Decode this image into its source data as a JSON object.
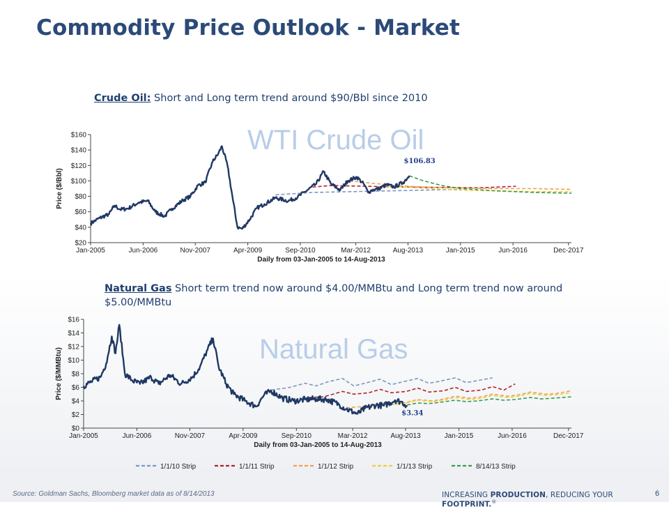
{
  "slide": {
    "title": "Commodity Price Outlook - Market",
    "oil_lead": "Crude Oil:",
    "oil_rest": " Short and Long term trend around $90/Bbl since 2010",
    "gas_lead": "Natural Gas",
    "gas_rest": " Short term trend now around $4.00/MMBtu and Long term trend now around $5.00/MMBtu",
    "source": "Source: Goldman Sachs, Bloomberg market data as of 8/14/2013",
    "tagline_pre": "INCREASING ",
    "tagline_bold1": "PRODUCTION",
    "tagline_mid": ", REDUCING YOUR ",
    "tagline_bold2": "FOOTPRINT.",
    "tagline_mark": "®",
    "page_number": "6"
  },
  "chart_data": [
    {
      "type": "line",
      "title": "WTI Crude Oil",
      "xlabel": "Daily from 03-Jan-2005 to 14-Aug-2013",
      "ylabel": "Price ($/Bbl)",
      "ylim": [
        20,
        160
      ],
      "xlim": [
        2005.0,
        2018.0
      ],
      "y_ticks": [
        "$20",
        "$40",
        "$60",
        "$80",
        "$100",
        "$120",
        "$140",
        "$160"
      ],
      "y_tick_values": [
        20,
        40,
        60,
        80,
        100,
        120,
        140,
        160
      ],
      "x_ticks": [
        "Jan-2005",
        "Jun-2006",
        "Nov-2007",
        "Apr-2009",
        "Sep-2010",
        "Mar-2012",
        "Aug-2013",
        "Jan-2015",
        "Jun-2016",
        "Dec-2017"
      ],
      "x_tick_values": [
        2005.0,
        2006.42,
        2007.83,
        2009.25,
        2010.67,
        2012.17,
        2013.58,
        2015.0,
        2016.42,
        2017.92
      ],
      "annotation": {
        "text": "$106.83",
        "x": 2013.62,
        "y": 106.83
      },
      "grid": false,
      "legend": "none",
      "series": [
        {
          "name": "WTI",
          "color": "#1f3864",
          "width": 2.4,
          "dash": "",
          "x": [
            2005.0,
            2005.25,
            2005.5,
            2005.65,
            2005.8,
            2006.0,
            2006.3,
            2006.55,
            2006.75,
            2007.0,
            2007.2,
            2007.5,
            2007.7,
            2007.9,
            2008.1,
            2008.3,
            2008.45,
            2008.55,
            2008.7,
            2008.85,
            2008.97,
            2009.1,
            2009.3,
            2009.5,
            2009.7,
            2010.0,
            2010.35,
            2010.6,
            2010.8,
            2011.1,
            2011.3,
            2011.5,
            2011.75,
            2011.95,
            2012.2,
            2012.4,
            2012.5,
            2012.6,
            2012.8,
            2013.0,
            2013.2,
            2013.45,
            2013.62
          ],
          "y": [
            45,
            52,
            57,
            68,
            63,
            64,
            72,
            74,
            60,
            54,
            64,
            75,
            80,
            94,
            98,
            125,
            135,
            145,
            120,
            75,
            40,
            38,
            50,
            65,
            70,
            78,
            74,
            79,
            86,
            96,
            112,
            96,
            88,
            100,
            105,
            95,
            85,
            88,
            90,
            95,
            92,
            98,
            106.83
          ]
        },
        {
          "name": "1/1/10 Strip",
          "color": "#7b97c4",
          "width": 1.6,
          "dash": "5 3",
          "x": [
            2010.0,
            2011.0,
            2012.0,
            2013.0,
            2014.0,
            2015.0
          ],
          "y": [
            82,
            85,
            86,
            87,
            88,
            89
          ]
        },
        {
          "name": "1/1/11 Strip",
          "color": "#b0232a",
          "width": 1.6,
          "dash": "5 3",
          "x": [
            2011.0,
            2011.5,
            2012.5,
            2013.5,
            2014.5,
            2015.5,
            2016.5
          ],
          "y": [
            92,
            94,
            93,
            92,
            91.5,
            91,
            93
          ]
        },
        {
          "name": "1/1/12 Strip",
          "color": "#f0a050",
          "width": 1.6,
          "dash": "5 3",
          "x": [
            2012.0,
            2012.6,
            2013.3,
            2014.0,
            2015.0,
            2016.0,
            2017.0,
            2018.0
          ],
          "y": [
            100,
            97,
            94,
            92,
            91,
            90,
            90,
            89
          ]
        },
        {
          "name": "1/1/13 Strip",
          "color": "#e8d040",
          "width": 1.6,
          "dash": "5 3",
          "x": [
            2013.0,
            2013.5,
            2014.2,
            2015.0,
            2016.0,
            2017.0,
            2018.0
          ],
          "y": [
            93,
            92,
            90,
            88,
            87,
            86,
            86
          ]
        },
        {
          "name": "8/14/13 Strip",
          "color": "#3a9a50",
          "width": 1.6,
          "dash": "5 3",
          "x": [
            2013.62,
            2014.0,
            2014.5,
            2015.0,
            2016.0,
            2017.0,
            2018.0
          ],
          "y": [
            106.5,
            100,
            94,
            90,
            87,
            85,
            84
          ]
        }
      ]
    },
    {
      "type": "line",
      "title": "Natural Gas",
      "xlabel": "Daily from 03-Jan-2005 to 14-Aug-2013",
      "ylabel": "Price ($/MMBtu)",
      "ylim": [
        0,
        16
      ],
      "xlim": [
        2005.0,
        2018.0
      ],
      "y_ticks": [
        "$0",
        "$2",
        "$4",
        "$6",
        "$8",
        "$10",
        "$12",
        "$14",
        "$16"
      ],
      "y_tick_values": [
        0,
        2,
        4,
        6,
        8,
        10,
        12,
        14,
        16
      ],
      "x_ticks": [
        "Jan-2005",
        "Jun-2006",
        "Nov-2007",
        "Apr-2009",
        "Sep-2010",
        "Mar-2012",
        "Aug-2013",
        "Jan-2015",
        "Jun-2016",
        "Dec-2017"
      ],
      "x_tick_values": [
        2005.0,
        2006.42,
        2007.83,
        2009.25,
        2010.67,
        2012.17,
        2013.58,
        2015.0,
        2016.42,
        2017.92
      ],
      "annotation": {
        "text": "$3.34",
        "x": 2013.62,
        "y": 3.34
      },
      "grid": false,
      "legend": "bottom",
      "series": [
        {
          "name": "Natural Gas",
          "color": "#1f3864",
          "width": 2.4,
          "dash": "",
          "x": [
            2005.0,
            2005.2,
            2005.45,
            2005.6,
            2005.75,
            2005.85,
            2005.95,
            2006.1,
            2006.3,
            2006.5,
            2006.8,
            2007.0,
            2007.3,
            2007.6,
            2007.9,
            2008.1,
            2008.3,
            2008.45,
            2008.6,
            2008.8,
            2009.0,
            2009.3,
            2009.6,
            2009.8,
            2010.0,
            2010.3,
            2010.6,
            2010.9,
            2011.2,
            2011.5,
            2011.8,
            2012.0,
            2012.3,
            2012.5,
            2012.8,
            2013.0,
            2013.3,
            2013.45,
            2013.62
          ],
          "y": [
            6.2,
            6.8,
            7.5,
            9.5,
            13.5,
            11,
            15.2,
            8,
            7,
            6.5,
            7.5,
            6.5,
            7.8,
            6.5,
            7.5,
            9,
            11.5,
            13.2,
            9,
            6.5,
            5,
            4,
            3.2,
            4.8,
            5.5,
            4.4,
            4,
            4.2,
            4.3,
            4.2,
            3.5,
            2.8,
            2.1,
            2.9,
            3.4,
            3.3,
            4.1,
            3.9,
            3.34
          ]
        },
        {
          "name": "1/1/10 Strip",
          "color": "#7b97c4",
          "width": 1.6,
          "dash": "5 3",
          "x": [
            2010.0,
            2010.5,
            2010.9,
            2011.2,
            2011.5,
            2011.9,
            2012.2,
            2012.5,
            2012.9,
            2013.2,
            2013.5,
            2013.9,
            2014.2,
            2014.5,
            2014.9,
            2015.2,
            2015.5,
            2015.9
          ],
          "y": [
            5.6,
            6,
            6.6,
            6.2,
            6.8,
            7.3,
            6.2,
            6.6,
            7.2,
            6.4,
            6.8,
            7.3,
            6.6,
            6.9,
            7.4,
            6.7,
            7,
            7.4
          ]
        },
        {
          "name": "1/1/11 Strip",
          "color": "#b0232a",
          "width": 1.6,
          "dash": "5 3",
          "x": [
            2011.0,
            2011.4,
            2011.9,
            2012.2,
            2012.6,
            2012.9,
            2013.2,
            2013.6,
            2013.9,
            2014.2,
            2014.6,
            2014.9,
            2015.2,
            2015.6,
            2015.9,
            2016.2,
            2016.5
          ],
          "y": [
            4.5,
            4.6,
            5.4,
            5,
            5.2,
            5.7,
            5.2,
            5.4,
            5.9,
            5.3,
            5.5,
            6,
            5.4,
            5.6,
            6.1,
            5.6,
            6.5
          ]
        },
        {
          "name": "1/1/12 Strip",
          "color": "#f0a050",
          "width": 1.6,
          "dash": "5 3",
          "x": [
            2012.0,
            2012.5,
            2012.9,
            2013.3,
            2013.6,
            2013.9,
            2014.3,
            2014.6,
            2014.9,
            2015.3,
            2015.6,
            2015.9,
            2016.3,
            2016.6,
            2016.9,
            2017.3,
            2017.6,
            2018.0
          ],
          "y": [
            3,
            3.2,
            3.6,
            3.5,
            3.8,
            4.2,
            4,
            4.3,
            4.7,
            4.4,
            4.6,
            5,
            4.7,
            4.9,
            5.3,
            5,
            5.1,
            5.5
          ]
        },
        {
          "name": "1/1/13 Strip",
          "color": "#e8d040",
          "width": 1.6,
          "dash": "5 3",
          "x": [
            2013.0,
            2013.3,
            2013.6,
            2013.9,
            2014.3,
            2014.6,
            2014.9,
            2015.3,
            2015.6,
            2015.9,
            2016.3,
            2016.6,
            2016.9,
            2017.3,
            2017.6,
            2018.0
          ],
          "y": [
            3.4,
            3.5,
            3.7,
            4.1,
            3.9,
            4.1,
            4.5,
            4.2,
            4.4,
            4.8,
            4.5,
            4.7,
            5.1,
            4.8,
            4.9,
            5.2
          ]
        },
        {
          "name": "8/14/13 Strip",
          "color": "#3a9a50",
          "width": 1.6,
          "dash": "5 3",
          "x": [
            2013.62,
            2013.9,
            2014.2,
            2014.5,
            2014.9,
            2015.2,
            2015.5,
            2015.9,
            2016.2,
            2016.5,
            2016.9,
            2017.2,
            2017.5,
            2018.0
          ],
          "y": [
            3.4,
            3.7,
            3.6,
            3.8,
            4.1,
            3.9,
            4,
            4.3,
            4.1,
            4.2,
            4.5,
            4.3,
            4.4,
            4.6
          ]
        }
      ]
    }
  ],
  "legend_items": [
    {
      "name": "1/1/10 Strip",
      "color": "#7b97c4"
    },
    {
      "name": "1/1/11 Strip",
      "color": "#b0232a"
    },
    {
      "name": "1/1/12 Strip",
      "color": "#f0a050"
    },
    {
      "name": "1/1/13 Strip",
      "color": "#e8d040"
    },
    {
      "name": "8/14/13 Strip",
      "color": "#3a9a50"
    }
  ],
  "colors": {
    "title": "#2b4a78",
    "watermark": "#b8cde8",
    "axis": "#333333"
  }
}
